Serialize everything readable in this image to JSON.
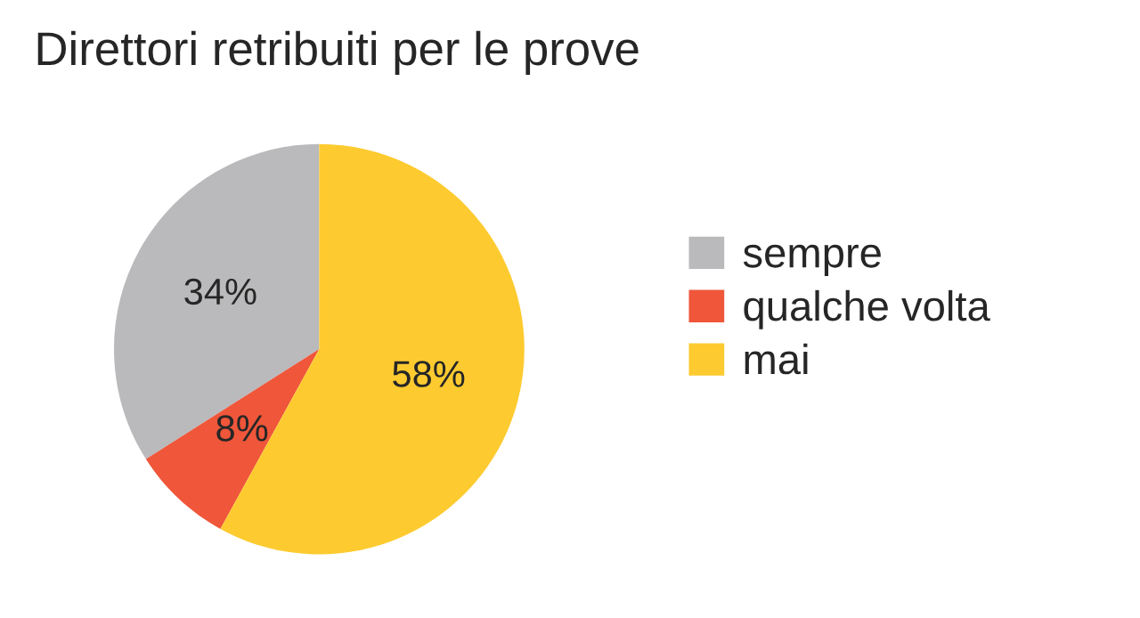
{
  "chart_data": {
    "type": "pie",
    "title": "Direttori retribuiti per le prove",
    "categories": [
      "sempre",
      "qualche volta",
      "mai"
    ],
    "values": [
      34,
      8,
      58
    ],
    "colors": [
      "#bababc",
      "#ef563a",
      "#fdcb30"
    ],
    "value_labels": [
      "34%",
      "8%",
      "58%"
    ],
    "legend": "right"
  }
}
